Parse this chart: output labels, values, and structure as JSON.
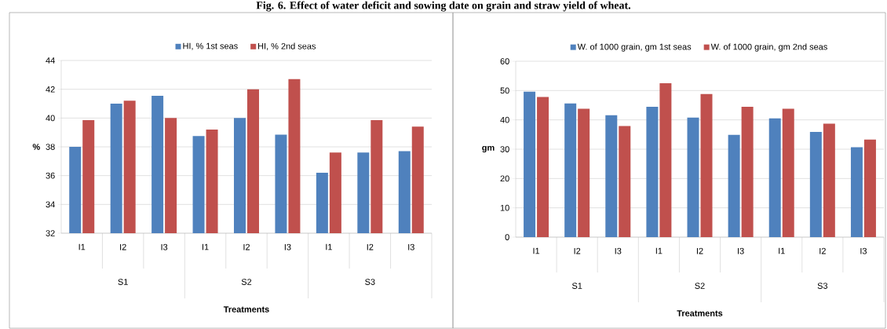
{
  "chart_data": [
    {
      "type": "bar",
      "title": "Fig. 6. Effect of water deficit and sowing date on grain and straw yield of wheat.",
      "xlabel": "Treatments",
      "ylabel": "%",
      "categories": [
        "I1",
        "I2",
        "I3",
        "I1",
        "I2",
        "I3",
        "I1",
        "I2",
        "I3"
      ],
      "annotations": [
        "S1",
        "S2",
        "S3"
      ],
      "series": [
        {
          "name": "HI, % 1st seas",
          "color": "#4f81bd",
          "values": [
            38.0,
            41.0,
            41.55,
            38.75,
            40.0,
            38.85,
            36.2,
            37.6,
            37.7
          ]
        },
        {
          "name": "HI, % 2nd seas",
          "color": "#c0504d",
          "values": [
            39.85,
            41.2,
            40.0,
            39.2,
            42.0,
            42.7,
            37.6,
            39.85,
            39.4
          ]
        }
      ],
      "ylim": [
        32,
        44
      ],
      "yticks": [
        32,
        34,
        36,
        38,
        40,
        42,
        44
      ],
      "grid": "y",
      "legend": "top"
    },
    {
      "type": "bar",
      "xlabel": "Treatments",
      "ylabel": "gm",
      "categories": [
        "I1",
        "I2",
        "I3",
        "I1",
        "I2",
        "I3",
        "I1",
        "I2",
        "I3"
      ],
      "annotations": [
        "S1",
        "S2",
        "S3"
      ],
      "series": [
        {
          "name": "W. of 1000 grain, gm 1st seas",
          "color": "#4f81bd",
          "values": [
            49.6,
            45.6,
            41.6,
            44.5,
            40.8,
            34.9,
            40.5,
            35.9,
            30.7
          ]
        },
        {
          "name": "W. of 1000 grain, gm 2nd seas",
          "color": "#c0504d",
          "values": [
            47.8,
            43.8,
            37.9,
            52.5,
            48.8,
            44.5,
            43.8,
            38.7,
            33.3
          ]
        }
      ],
      "ylim": [
        0,
        60
      ],
      "yticks": [
        0,
        10,
        20,
        30,
        40,
        50,
        60
      ],
      "grid": "y",
      "legend": "top"
    }
  ]
}
